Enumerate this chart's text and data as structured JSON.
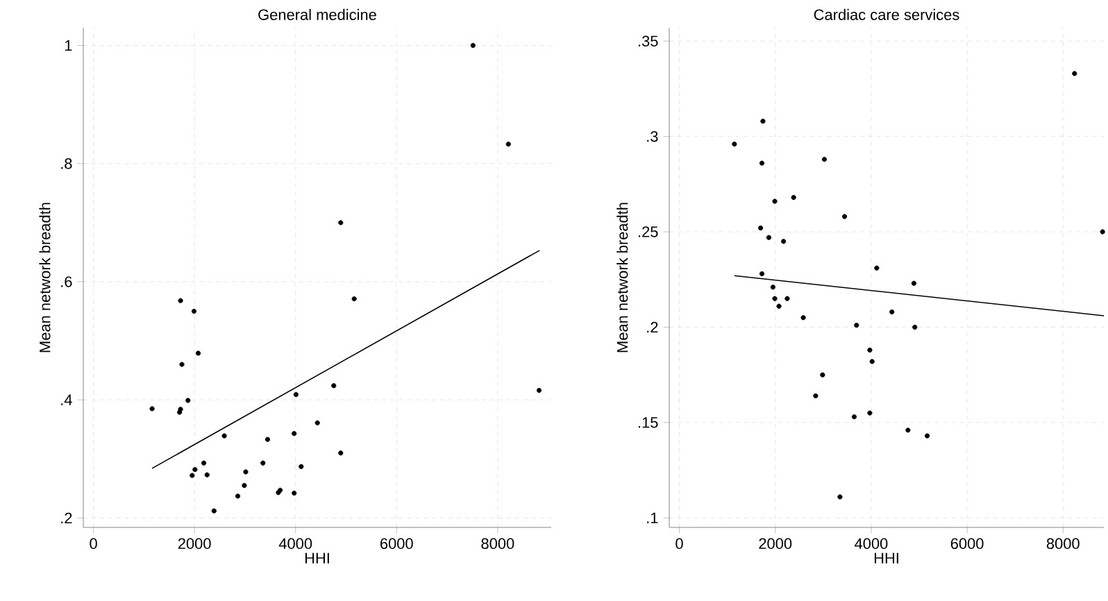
{
  "chart_data": [
    {
      "type": "scatter",
      "title": "General medicine",
      "xlabel": "HHI",
      "ylabel": "Mean network breadth",
      "xlim": [
        -200,
        9060
      ],
      "ylim": [
        0.184,
        1.03
      ],
      "xticks": [
        0,
        2000,
        4000,
        6000,
        8000
      ],
      "yticks": [
        {
          "value": 0.2,
          "label": ".2"
        },
        {
          "value": 0.4,
          "label": ".4"
        },
        {
          "value": 0.6,
          "label": ".6"
        },
        {
          "value": 0.8,
          "label": ".8"
        },
        1
      ],
      "grid": true,
      "marker": "circle",
      "series": [
        {
          "color": "#000000",
          "x": [
            7512,
            8212,
            8820,
            4894,
            5161,
            1724,
            1991,
            2074,
            1751,
            4756,
            4009,
            1871,
            1161,
            1724,
            1705,
            4433,
            2590,
            3447,
            3972,
            4894,
            2184,
            3355,
            4111,
            2009,
            3014,
            1954,
            2249,
            2986,
            2857,
            3659,
            3696,
            3972,
            2387
          ],
          "values": [
            1.0,
            0.833,
            0.416,
            0.7,
            0.571,
            0.568,
            0.55,
            0.479,
            0.46,
            0.424,
            0.409,
            0.399,
            0.385,
            0.384,
            0.379,
            0.361,
            0.339,
            0.333,
            0.343,
            0.31,
            0.293,
            0.293,
            0.287,
            0.282,
            0.278,
            0.272,
            0.273,
            0.255,
            0.237,
            0.243,
            0.247,
            0.242,
            0.212
          ]
        },
        {
          "type": "line",
          "marker": "none",
          "color": "#000000",
          "x": [
            1161,
            8829
          ],
          "values": [
            0.284,
            0.653
          ]
        }
      ]
    },
    {
      "type": "scatter",
      "title": "Cardiac care services",
      "xlabel": "HHI",
      "ylabel": "Mean network breadth",
      "xlim": [
        -210,
        8850
      ],
      "ylim": [
        0.095,
        0.357
      ],
      "xticks": [
        0,
        2000,
        4000,
        6000,
        8000
      ],
      "yticks": [
        {
          "value": 0.1,
          "label": ".1"
        },
        {
          "value": 0.15,
          "label": ".15"
        },
        {
          "value": 0.2,
          "label": ".2"
        },
        {
          "value": 0.25,
          "label": ".25"
        },
        {
          "value": 0.3,
          "label": ".3"
        },
        {
          "value": 0.35,
          "label": ".35"
        }
      ],
      "grid": true,
      "marker": "circle",
      "series": [
        {
          "color": "#000000",
          "x": [
            8239,
            8823,
            1742,
            1148,
            1722,
            3024,
            1990,
            2383,
            3445,
            1694,
            1866,
            2172,
            4115,
            1722,
            4890,
            1952,
            1990,
            2249,
            2077,
            4431,
            2584,
            3694,
            4909,
            3971,
            4019,
            2986,
            2842,
            3971,
            3646,
            4766,
            5167,
            3349
          ],
          "values": [
            0.333,
            0.25,
            0.308,
            0.296,
            0.286,
            0.288,
            0.266,
            0.268,
            0.258,
            0.252,
            0.247,
            0.245,
            0.231,
            0.228,
            0.223,
            0.221,
            0.215,
            0.215,
            0.211,
            0.208,
            0.205,
            0.201,
            0.2,
            0.188,
            0.182,
            0.175,
            0.164,
            0.155,
            0.153,
            0.146,
            0.143,
            0.111
          ]
        },
        {
          "type": "line",
          "marker": "none",
          "color": "#000000",
          "x": [
            1148,
            8850
          ],
          "values": [
            0.227,
            0.206
          ]
        }
      ]
    }
  ]
}
